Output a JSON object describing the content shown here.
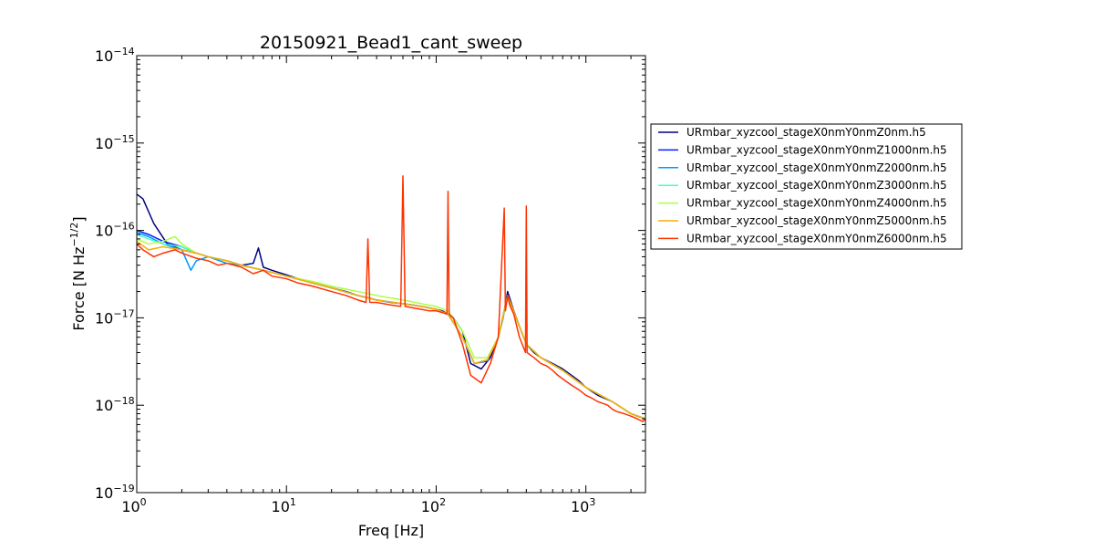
{
  "chart_data": {
    "type": "line",
    "title": "20150921_Bead1_cant_sweep",
    "xlabel": "Freq [Hz]",
    "ylabel": "Force [N Hz^-1/2]",
    "ylabel_base": "Force [N Hz",
    "ylabel_exp": "−1/2",
    "ylabel_end": "]",
    "x_scale": "log",
    "y_scale": "log",
    "xlim": [
      1,
      2500
    ],
    "ylim": [
      1e-19,
      1e-14
    ],
    "grid": false,
    "legend_position": "right, outside plot",
    "x_ticks": [
      {
        "value": 1,
        "base": "10",
        "exp": "0"
      },
      {
        "value": 10,
        "base": "10",
        "exp": "1"
      },
      {
        "value": 100,
        "base": "10",
        "exp": "2"
      },
      {
        "value": 1000,
        "base": "10",
        "exp": "3"
      }
    ],
    "y_ticks": [
      {
        "value": 1e-19,
        "base": "10",
        "exp": "−19"
      },
      {
        "value": 1e-18,
        "base": "10",
        "exp": "−18"
      },
      {
        "value": 1e-17,
        "base": "10",
        "exp": "−17"
      },
      {
        "value": 1e-16,
        "base": "10",
        "exp": "−16"
      },
      {
        "value": 1e-15,
        "base": "10",
        "exp": "−15"
      },
      {
        "value": 1e-14,
        "base": "10",
        "exp": "−14"
      }
    ],
    "series": [
      {
        "name": "URmbar_xyzcool_stageX0nmY0nmZ0nm.h5",
        "color": "#00007f",
        "x": [
          1,
          1.1,
          1.3,
          1.6,
          2,
          2.5,
          3,
          4,
          5,
          6,
          6.5,
          7,
          8,
          10,
          12,
          15,
          20,
          25,
          30,
          35,
          40,
          50,
          60,
          70,
          80,
          90,
          100,
          110,
          120,
          130,
          150,
          170,
          200,
          230,
          260,
          280,
          300,
          330,
          360,
          400,
          450,
          500,
          600,
          700,
          800,
          900,
          1000,
          1200,
          1500,
          1800,
          2000,
          2200,
          2500
        ],
        "y": [
          2.6e-16,
          2.3e-16,
          1.2e-16,
          7e-17,
          6e-17,
          5.5e-17,
          5e-17,
          4.5e-17,
          4e-17,
          4.2e-17,
          6.3e-17,
          3.8e-17,
          3.5e-17,
          3.1e-17,
          2.8e-17,
          2.5e-17,
          2.2e-17,
          2e-17,
          1.8e-17,
          1.7e-17,
          1.6e-17,
          1.5e-17,
          1.45e-17,
          1.4e-17,
          1.35e-17,
          1.3e-17,
          1.25e-17,
          1.2e-17,
          1.1e-17,
          1e-17,
          7e-18,
          3e-18,
          2.6e-18,
          3.5e-18,
          6e-18,
          1e-17,
          2e-17,
          1.2e-17,
          8e-18,
          5e-18,
          4e-18,
          3.5e-18,
          3e-18,
          2.6e-18,
          2.2e-18,
          1.9e-18,
          1.6e-18,
          1.3e-18,
          1.1e-18,
          9e-19,
          8e-19,
          7.5e-19,
          7e-19
        ]
      },
      {
        "name": "URmbar_xyzcool_stageX0nmY0nmZ1000nm.h5",
        "color": "#0022ff",
        "x": [
          1,
          1.2,
          1.5,
          2,
          2.5,
          3,
          4,
          5,
          7,
          10,
          15,
          20,
          30,
          40,
          60,
          80,
          100,
          120,
          150,
          180,
          220,
          260,
          300,
          350,
          400,
          500,
          700,
          1000,
          1500,
          2000,
          2500
        ],
        "y": [
          1e-16,
          9e-17,
          7.5e-17,
          6.5e-17,
          5.5e-17,
          5e-17,
          4.5e-17,
          4e-17,
          3.5e-17,
          3e-17,
          2.5e-17,
          2.2e-17,
          1.8e-17,
          1.6e-17,
          1.45e-17,
          1.35e-17,
          1.25e-17,
          1.1e-17,
          6e-18,
          3e-18,
          3.2e-18,
          6e-18,
          1.8e-17,
          9e-18,
          5e-18,
          3.5e-18,
          2.5e-18,
          1.6e-18,
          1.1e-18,
          8e-19,
          7e-19
        ]
      },
      {
        "name": "URmbar_xyzcool_stageX0nmY0nmZ2000nm.h5",
        "color": "#0099ff",
        "x": [
          1,
          1.2,
          1.5,
          2,
          2.3,
          2.5,
          3,
          4,
          5,
          7,
          10,
          15,
          20,
          30,
          40,
          60,
          80,
          100,
          120,
          150,
          180,
          220,
          260,
          300,
          350,
          400,
          500,
          700,
          1000,
          1500,
          2000,
          2500
        ],
        "y": [
          9.5e-17,
          8.5e-17,
          7e-17,
          6e-17,
          3.5e-17,
          4.5e-17,
          5e-17,
          4.2e-17,
          4e-17,
          3.5e-17,
          3e-17,
          2.5e-17,
          2.2e-17,
          1.8e-17,
          1.6e-17,
          1.45e-17,
          1.35e-17,
          1.25e-17,
          1.1e-17,
          6e-18,
          3e-18,
          3.3e-18,
          6e-18,
          1.7e-17,
          9e-18,
          5e-18,
          3.5e-18,
          2.5e-18,
          1.6e-18,
          1.1e-18,
          8e-19,
          7e-19
        ]
      },
      {
        "name": "URmbar_xyzcool_stageX0nmY0nmZ3000nm.h5",
        "color": "#44ffcc",
        "x": [
          1,
          1.2,
          1.5,
          2,
          2.5,
          3,
          4,
          5,
          7,
          10,
          15,
          20,
          30,
          40,
          60,
          80,
          100,
          120,
          150,
          180,
          220,
          260,
          300,
          350,
          400,
          500,
          700,
          1000,
          1500,
          2000,
          2500
        ],
        "y": [
          9e-17,
          8e-17,
          7e-17,
          6.5e-17,
          5.5e-17,
          5e-17,
          4.5e-17,
          4e-17,
          3.5e-17,
          3e-17,
          2.5e-17,
          2.2e-17,
          1.8e-17,
          1.6e-17,
          1.45e-17,
          1.35e-17,
          1.25e-17,
          1.1e-17,
          6e-18,
          3e-18,
          3.3e-18,
          6e-18,
          1.7e-17,
          9e-18,
          5e-18,
          3.5e-18,
          2.5e-18,
          1.6e-18,
          1.1e-18,
          8e-19,
          7e-19
        ]
      },
      {
        "name": "URmbar_xyzcool_stageX0nmY0nmZ4000nm.h5",
        "color": "#aaff44",
        "x": [
          1,
          1.2,
          1.5,
          1.8,
          2,
          2.5,
          3,
          4,
          5,
          7,
          10,
          15,
          20,
          30,
          40,
          60,
          80,
          100,
          120,
          150,
          180,
          220,
          260,
          300,
          350,
          400,
          500,
          700,
          1000,
          1500,
          2000,
          2500
        ],
        "y": [
          8e-17,
          7e-17,
          7.5e-17,
          8.5e-17,
          7e-17,
          5.5e-17,
          5e-17,
          4.5e-17,
          4e-17,
          3.5e-17,
          3e-17,
          2.6e-17,
          2.3e-17,
          2e-17,
          1.8e-17,
          1.6e-17,
          1.45e-17,
          1.35e-17,
          1.2e-17,
          7e-18,
          3.5e-18,
          3.5e-18,
          6e-18,
          1.8e-17,
          9e-18,
          5e-18,
          3.5e-18,
          2.5e-18,
          1.6e-18,
          1.1e-18,
          8e-19,
          7e-19
        ]
      },
      {
        "name": "URmbar_xyzcool_stageX0nmY0nmZ5000nm.h5",
        "color": "#ffaa00",
        "x": [
          1,
          1.2,
          1.5,
          2,
          2.5,
          3,
          4,
          5,
          7,
          10,
          15,
          20,
          30,
          40,
          60,
          80,
          100,
          120,
          150,
          180,
          220,
          260,
          300,
          350,
          400,
          500,
          700,
          1000,
          1500,
          2000,
          2500
        ],
        "y": [
          7.5e-17,
          6e-17,
          6.5e-17,
          6e-17,
          5.5e-17,
          5e-17,
          4.5e-17,
          4e-17,
          3.5e-17,
          3e-17,
          2.5e-17,
          2.2e-17,
          1.8e-17,
          1.6e-17,
          1.45e-17,
          1.35e-17,
          1.25e-17,
          1.1e-17,
          6e-18,
          3e-18,
          3.3e-18,
          6e-18,
          1.8e-17,
          9e-18,
          5e-18,
          3.5e-18,
          2.5e-18,
          1.6e-18,
          1.1e-18,
          8e-19,
          7e-19
        ]
      },
      {
        "name": "URmbar_xyzcool_stageX0nmY0nmZ6000nm.h5",
        "color": "#ff3300",
        "x": [
          1,
          1.1,
          1.3,
          1.5,
          1.8,
          2,
          2.5,
          3,
          3.5,
          4,
          5,
          6,
          7,
          8,
          10,
          12,
          15,
          20,
          25,
          30,
          34,
          35,
          36,
          40,
          50,
          58,
          60,
          62,
          70,
          80,
          90,
          100,
          110,
          118,
          120,
          122,
          130,
          150,
          170,
          200,
          230,
          260,
          285,
          290,
          300,
          310,
          330,
          360,
          395,
          400,
          405,
          450,
          500,
          550,
          600,
          650,
          700,
          800,
          900,
          1000,
          1100,
          1200,
          1400,
          1500,
          1600,
          1800,
          2000,
          2200,
          2400,
          2500
        ],
        "y": [
          7e-17,
          6e-17,
          5e-17,
          5.5e-17,
          6e-17,
          5.5e-17,
          4.8e-17,
          4.5e-17,
          4e-17,
          4.2e-17,
          3.8e-17,
          3.2e-17,
          3.5e-17,
          3e-17,
          2.8e-17,
          2.5e-17,
          2.3e-17,
          2e-17,
          1.8e-17,
          1.6e-17,
          1.5e-17,
          8e-17,
          1.5e-17,
          1.5e-17,
          1.4e-17,
          1.35e-17,
          4.2e-16,
          1.35e-17,
          1.3e-17,
          1.25e-17,
          1.2e-17,
          1.2e-17,
          1.15e-17,
          1.1e-17,
          2.8e-16,
          1.1e-17,
          1e-17,
          5e-18,
          2.2e-18,
          1.8e-18,
          3e-18,
          6e-18,
          1.8e-16,
          1.2e-17,
          1.8e-17,
          1.4e-17,
          1.1e-17,
          6e-18,
          4e-18,
          1.9e-16,
          4e-18,
          3.5e-18,
          3e-18,
          2.8e-18,
          2.5e-18,
          2.2e-18,
          2e-18,
          1.7e-18,
          1.5e-18,
          1.3e-18,
          1.2e-18,
          1.1e-18,
          1e-18,
          9e-19,
          8.5e-19,
          8e-19,
          7.5e-19,
          7e-19,
          6.5e-19,
          7e-19
        ]
      }
    ]
  }
}
